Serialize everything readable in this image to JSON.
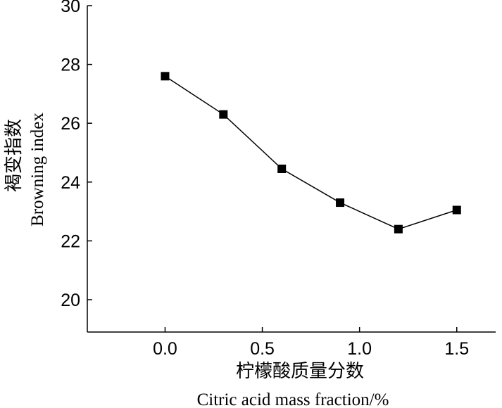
{
  "chart_data": {
    "type": "line",
    "x": [
      0.0,
      0.3,
      0.6,
      0.9,
      1.2,
      1.5
    ],
    "series": [
      {
        "values": [
          27.6,
          26.3,
          24.45,
          23.3,
          22.4,
          23.05
        ],
        "marker": "square",
        "color": "#000000"
      }
    ],
    "xlim": [
      -0.4,
      1.7
    ],
    "ylim": [
      18.9,
      30
    ],
    "xticks": [
      0.0,
      0.5,
      1.0,
      1.5
    ],
    "xtick_labels": [
      "0.0",
      "0.5",
      "1.0",
      "1.5"
    ],
    "yticks": [
      20,
      22,
      24,
      26,
      28,
      30
    ],
    "ytick_labels": [
      "20",
      "22",
      "24",
      "26",
      "28",
      "30"
    ],
    "xlabel_cn": "柠檬酸质量分数",
    "xlabel_en": "Citric acid mass fraction/%",
    "ylabel_cn": "褐变指数",
    "ylabel_en": "Browning index",
    "grid": false
  }
}
